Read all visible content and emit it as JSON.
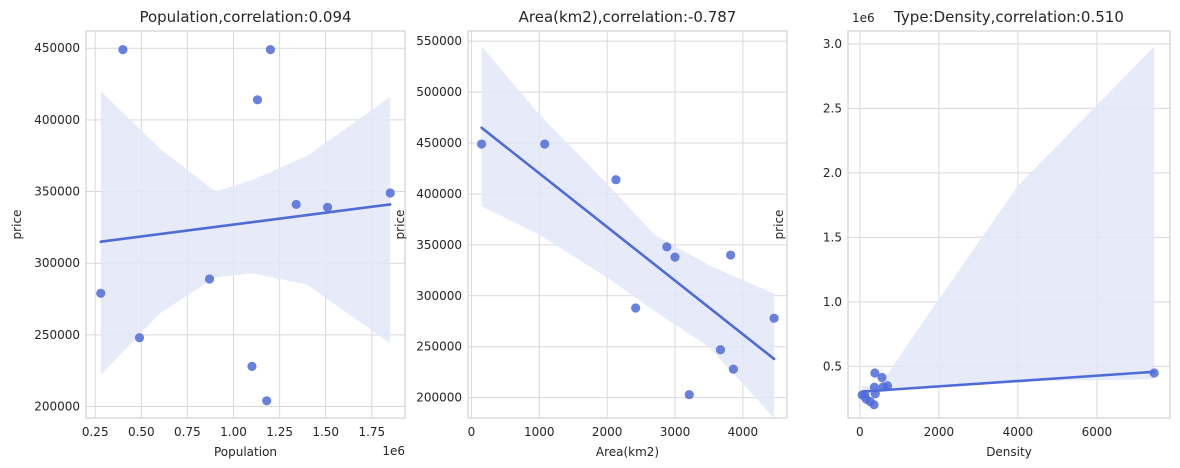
{
  "chart_data": [
    {
      "type": "scatter",
      "title": "Population,correlation:0.094",
      "xlabel": "Population",
      "ylabel": "price",
      "x_offset_label": "1e6",
      "y_offset_label": "",
      "xlim": [
        200000,
        1930000
      ],
      "ylim": [
        192000,
        462000
      ],
      "x_ticks": [
        250000,
        500000,
        750000,
        1000000,
        1250000,
        1500000,
        1750000
      ],
      "x_tick_labels": [
        "0.25",
        "0.50",
        "0.75",
        "1.00",
        "1.25",
        "1.50",
        "1.75"
      ],
      "y_ticks": [
        200000,
        250000,
        300000,
        350000,
        400000,
        450000
      ],
      "y_tick_labels": [
        "200000",
        "250000",
        "300000",
        "350000",
        "400000",
        "450000"
      ],
      "points": [
        {
          "x": 280000,
          "y": 279000
        },
        {
          "x": 400000,
          "y": 449000
        },
        {
          "x": 490000,
          "y": 248000
        },
        {
          "x": 870000,
          "y": 289000
        },
        {
          "x": 1100000,
          "y": 228000
        },
        {
          "x": 1130000,
          "y": 414000
        },
        {
          "x": 1180000,
          "y": 204000
        },
        {
          "x": 1200000,
          "y": 449000
        },
        {
          "x": 1340000,
          "y": 341000
        },
        {
          "x": 1510000,
          "y": 339000
        },
        {
          "x": 1850000,
          "y": 349000
        }
      ],
      "regression_line": {
        "x": [
          280000,
          1850000
        ],
        "y": [
          315000,
          341000
        ]
      },
      "confidence_band": {
        "x": [
          280000,
          600000,
          900000,
          1100000,
          1400000,
          1850000
        ],
        "lower": [
          222000,
          265000,
          290000,
          293000,
          285000,
          244000
        ],
        "upper": [
          420000,
          380000,
          350000,
          358000,
          375000,
          416000
        ]
      },
      "grid": true,
      "colors": {
        "points": "#4f6bd8",
        "line": "#4f6bd8",
        "band": "#e3e7f8"
      }
    },
    {
      "type": "scatter",
      "title": "Area(km2),correlation:-0.787",
      "xlabel": "Area(km2)",
      "ylabel": "price",
      "x_offset_label": "",
      "y_offset_label": "",
      "xlim": [
        -50,
        4650
      ],
      "ylim": [
        180000,
        560000
      ],
      "x_ticks": [
        0,
        1000,
        2000,
        3000,
        4000
      ],
      "x_tick_labels": [
        "0",
        "1000",
        "2000",
        "3000",
        "4000"
      ],
      "y_ticks": [
        200000,
        250000,
        300000,
        350000,
        400000,
        450000,
        500000,
        550000
      ],
      "y_tick_labels": [
        "200000",
        "250000",
        "300000",
        "350000",
        "400000",
        "450000",
        "500000",
        "550000"
      ],
      "points": [
        {
          "x": 150,
          "y": 449000
        },
        {
          "x": 1080,
          "y": 449000
        },
        {
          "x": 2130,
          "y": 414000
        },
        {
          "x": 2420,
          "y": 288000
        },
        {
          "x": 2880,
          "y": 348000
        },
        {
          "x": 3000,
          "y": 338000
        },
        {
          "x": 3210,
          "y": 203000
        },
        {
          "x": 3670,
          "y": 247000
        },
        {
          "x": 3820,
          "y": 340000
        },
        {
          "x": 3860,
          "y": 228000
        },
        {
          "x": 4460,
          "y": 278000
        }
      ],
      "regression_line": {
        "x": [
          150,
          4460
        ],
        "y": [
          465000,
          238000
        ]
      },
      "confidence_band": {
        "x": [
          150,
          1000,
          2000,
          2700,
          3500,
          4460
        ],
        "lower": [
          388000,
          360000,
          318000,
          285000,
          250000,
          180000
        ],
        "upper": [
          545000,
          478000,
          410000,
          360000,
          330000,
          302000
        ]
      },
      "grid": true,
      "colors": {
        "points": "#4f6bd8",
        "line": "#4f6bd8",
        "band": "#e3e7f8"
      }
    },
    {
      "type": "scatter",
      "title": "Type:Density,correlation:0.510",
      "xlabel": "Density",
      "ylabel": "price",
      "x_offset_label": "",
      "y_offset_label": "1e6",
      "xlim": [
        -300,
        7850
      ],
      "ylim": [
        100000,
        3100000
      ],
      "x_ticks": [
        0,
        2000,
        4000,
        6000
      ],
      "x_tick_labels": [
        "0",
        "2000",
        "4000",
        "6000"
      ],
      "y_ticks": [
        500000,
        1000000,
        1500000,
        2000000,
        2500000,
        3000000
      ],
      "y_tick_labels": [
        "0.5",
        "1.0",
        "1.5",
        "2.0",
        "2.5",
        "3.0"
      ],
      "points": [
        {
          "x": 60,
          "y": 278000
        },
        {
          "x": 120,
          "y": 280000
        },
        {
          "x": 160,
          "y": 247000
        },
        {
          "x": 260,
          "y": 228000
        },
        {
          "x": 360,
          "y": 203000
        },
        {
          "x": 370,
          "y": 339000
        },
        {
          "x": 390,
          "y": 288000
        },
        {
          "x": 380,
          "y": 449000
        },
        {
          "x": 560,
          "y": 414000
        },
        {
          "x": 590,
          "y": 341000
        },
        {
          "x": 700,
          "y": 349000
        },
        {
          "x": 7450,
          "y": 449000
        }
      ],
      "regression_line": {
        "x": [
          60,
          7450
        ],
        "y": [
          305000,
          458000
        ]
      },
      "confidence_band": {
        "x": [
          60,
          500,
          1500,
          4000,
          7450
        ],
        "lower": [
          262000,
          300000,
          330000,
          385000,
          400000
        ],
        "upper": [
          348000,
          348000,
          800000,
          1900000,
          2980000
        ]
      },
      "grid": true,
      "colors": {
        "points": "#4f6bd8",
        "line": "#4f6bd8",
        "band": "#e3e7f8"
      }
    }
  ]
}
